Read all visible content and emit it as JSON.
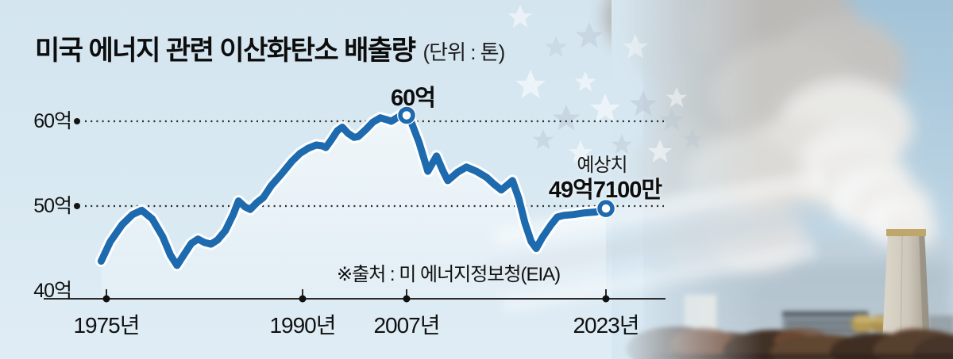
{
  "header": {
    "title": "미국 에너지 관련 이산화탄소 배출량",
    "unit_label": "(단위 : 톤)"
  },
  "annotations": {
    "peak_label": "60억",
    "forecast_caption": "예상치",
    "forecast_value": "49억7100만"
  },
  "source_note": "※출처 : 미 에너지정보청(EIA)",
  "colors": {
    "line": "#1e6aae",
    "line_casing": "#ffffff",
    "grid_dot": "#141414",
    "axis": "#2b2b2b",
    "background": "#d9e9f2"
  },
  "decor": {
    "flag_watermark": "us-flag-watermark",
    "photo": "power-plant-smokestack-photo"
  },
  "chart_data": {
    "type": "line",
    "title": "미국 에너지 관련 이산화탄소 배출량",
    "unit_note": "단위 : 톤",
    "xlabel": "",
    "ylabel": "",
    "ylim": [
      40,
      62
    ],
    "xlim": [
      1974,
      2023
    ],
    "grid": "horizontal dotted",
    "legend": "none",
    "y_ticks": [
      {
        "label": "60억",
        "value": 60,
        "dotted": true
      },
      {
        "label": "50억",
        "value": 50,
        "dotted": true
      },
      {
        "label": "40억",
        "value": 40,
        "dotted": false
      }
    ],
    "x_ticks": [
      {
        "label": "1975년",
        "year": 1975
      },
      {
        "label": "1990년",
        "year": 1990
      },
      {
        "label": "2007년",
        "year": 2007
      },
      {
        "label": "2023년",
        "year": 2023
      }
    ],
    "series": [
      {
        "name": "미국 에너지 관련 이산화탄소 배출량 (억 톤)",
        "points": [
          [
            1974.6,
            43.5
          ],
          [
            1975.3,
            45.8
          ],
          [
            1976.2,
            47.8
          ],
          [
            1977.0,
            49.0
          ],
          [
            1977.7,
            49.5
          ],
          [
            1978.5,
            48.5
          ],
          [
            1979.3,
            46.4
          ],
          [
            1979.9,
            44.2
          ],
          [
            1980.4,
            43.0
          ],
          [
            1980.9,
            44.2
          ],
          [
            1981.5,
            45.6
          ],
          [
            1982.0,
            46.1
          ],
          [
            1982.5,
            45.7
          ],
          [
            1983.0,
            45.5
          ],
          [
            1983.5,
            46.0
          ],
          [
            1984.1,
            47.1
          ],
          [
            1984.7,
            49.0
          ],
          [
            1985.1,
            50.6
          ],
          [
            1985.6,
            49.9
          ],
          [
            1986.0,
            49.6
          ],
          [
            1986.5,
            50.4
          ],
          [
            1987.0,
            51.0
          ],
          [
            1987.6,
            52.4
          ],
          [
            1988.4,
            53.8
          ],
          [
            1989.2,
            55.3
          ],
          [
            1989.8,
            56.2
          ],
          [
            1990.9,
            56.8
          ],
          [
            1992.2,
            57.2
          ],
          [
            1993.2,
            57.1
          ],
          [
            1993.8,
            56.9
          ],
          [
            1994.7,
            57.8
          ],
          [
            1995.7,
            58.9
          ],
          [
            1996.5,
            59.3
          ],
          [
            1997.4,
            58.6
          ],
          [
            1998.4,
            58.1
          ],
          [
            1999.1,
            58.2
          ],
          [
            2000.3,
            59.0
          ],
          [
            2001.5,
            59.9
          ],
          [
            2002.7,
            60.4
          ],
          [
            2003.7,
            60.2
          ],
          [
            2004.5,
            60.0
          ],
          [
            2005.4,
            60.4
          ],
          [
            2006.1,
            60.7
          ],
          [
            2007.0,
            60.7
          ],
          [
            2007.4,
            59.8
          ],
          [
            2008.0,
            57.5
          ],
          [
            2008.7,
            54.1
          ],
          [
            2009.4,
            55.9
          ],
          [
            2009.9,
            54.2
          ],
          [
            2010.3,
            53.0
          ],
          [
            2011.1,
            54.0
          ],
          [
            2011.8,
            54.6
          ],
          [
            2012.6,
            54.1
          ],
          [
            2013.4,
            53.4
          ],
          [
            2014.0,
            52.6
          ],
          [
            2014.6,
            51.9
          ],
          [
            2015.1,
            52.5
          ],
          [
            2015.5,
            53.0
          ],
          [
            2016.0,
            50.9
          ],
          [
            2016.5,
            48.0
          ],
          [
            2017.0,
            45.8
          ],
          [
            2017.4,
            45.0
          ],
          [
            2017.9,
            46.3
          ],
          [
            2018.6,
            47.8
          ],
          [
            2019.1,
            48.7
          ],
          [
            2019.6,
            48.9
          ],
          [
            2020.4,
            49.0
          ],
          [
            2021.3,
            49.2
          ],
          [
            2022.2,
            49.3
          ],
          [
            2023.0,
            49.71
          ]
        ]
      }
    ],
    "markers": [
      {
        "year": 2007.0,
        "value": 60.7,
        "label": "60억"
      },
      {
        "year": 2023.0,
        "value": 49.71,
        "label": "예상치 49억7100만"
      }
    ]
  }
}
